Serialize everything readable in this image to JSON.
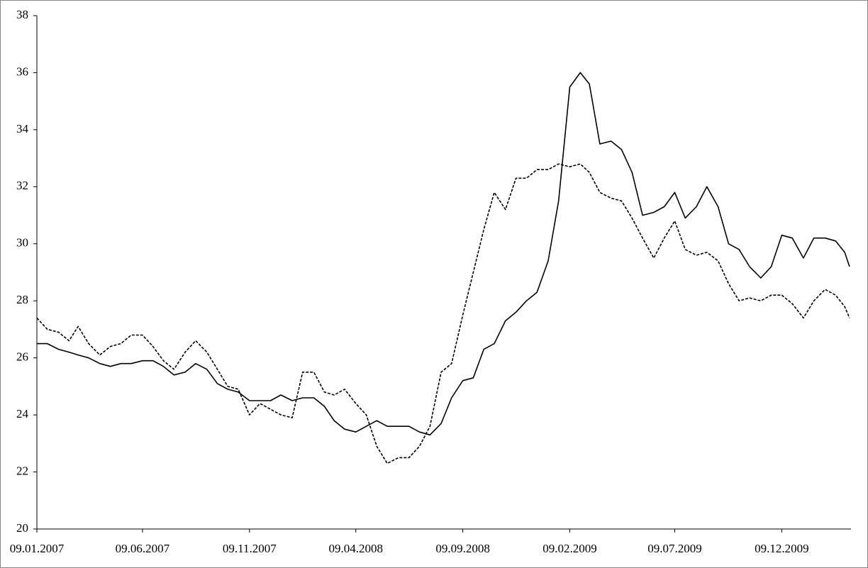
{
  "chart_data": {
    "type": "line",
    "x": [
      "09.01.2007",
      "24.01.2007",
      "09.02.2007",
      "24.02.2007",
      "09.03.2007",
      "24.03.2007",
      "09.04.2007",
      "24.04.2007",
      "09.05.2007",
      "24.05.2007",
      "09.06.2007",
      "24.06.2007",
      "09.07.2007",
      "24.07.2007",
      "09.08.2007",
      "24.08.2007",
      "09.09.2007",
      "24.09.2007",
      "09.10.2007",
      "24.10.2007",
      "09.11.2007",
      "24.11.2007",
      "09.12.2007",
      "24.12.2007",
      "09.01.2008",
      "24.01.2008",
      "09.02.2008",
      "24.02.2008",
      "09.03.2008",
      "24.03.2008",
      "09.04.2008",
      "24.04.2008",
      "09.05.2008",
      "24.05.2008",
      "09.06.2008",
      "24.06.2008",
      "09.07.2008",
      "24.07.2008",
      "09.08.2008",
      "24.08.2008",
      "09.09.2008",
      "24.09.2008",
      "09.10.2008",
      "24.10.2008",
      "09.11.2008",
      "24.11.2008",
      "09.12.2008",
      "24.12.2008",
      "09.01.2009",
      "24.01.2009",
      "09.02.2009",
      "24.02.2009",
      "09.03.2009",
      "24.03.2009",
      "09.04.2009",
      "24.04.2009",
      "09.05.2009",
      "24.05.2009",
      "09.06.2009",
      "24.06.2009",
      "09.07.2009",
      "24.07.2009",
      "09.08.2009",
      "24.08.2009",
      "09.09.2009",
      "24.09.2009",
      "09.10.2009",
      "24.10.2009",
      "09.11.2009",
      "24.11.2009",
      "09.12.2009",
      "24.12.2009",
      "09.01.2010",
      "24.01.2010",
      "09.02.2010",
      "24.02.2010",
      "09.03.2010",
      "16.03.2010"
    ],
    "series": [
      {
        "color": "#000000",
        "dash": false,
        "values": [
          26.5,
          26.5,
          26.3,
          26.2,
          26.1,
          26.0,
          25.8,
          25.7,
          25.8,
          25.8,
          25.9,
          25.9,
          25.7,
          25.4,
          25.5,
          25.8,
          25.6,
          25.1,
          24.9,
          24.8,
          24.5,
          24.5,
          24.5,
          24.7,
          24.5,
          24.6,
          24.6,
          24.3,
          23.8,
          23.5,
          23.4,
          23.6,
          23.8,
          23.6,
          23.6,
          23.6,
          23.4,
          23.3,
          23.7,
          24.6,
          25.2,
          25.3,
          26.3,
          26.5,
          27.3,
          27.6,
          28.0,
          28.3,
          29.4,
          31.5,
          35.5,
          36.0,
          35.6,
          33.5,
          33.6,
          33.3,
          32.5,
          31.0,
          31.1,
          31.3,
          31.8,
          30.9,
          31.3,
          32.0,
          31.3,
          30.0,
          29.8,
          29.2,
          28.8,
          29.2,
          30.3,
          30.2,
          29.5,
          30.2,
          30.2,
          30.1,
          29.7,
          29.2
        ]
      },
      {
        "color": "#000000",
        "dash": true,
        "values": [
          27.4,
          27.0,
          26.9,
          26.6,
          27.1,
          26.5,
          26.1,
          26.4,
          26.5,
          26.8,
          26.8,
          26.4,
          25.9,
          25.6,
          26.2,
          26.6,
          26.2,
          25.6,
          25.0,
          24.9,
          24.0,
          24.4,
          24.2,
          24.0,
          23.9,
          25.5,
          25.5,
          24.8,
          24.7,
          24.9,
          24.4,
          24.0,
          22.9,
          22.3,
          22.5,
          22.5,
          22.9,
          23.6,
          25.5,
          25.8,
          27.5,
          29.0,
          30.5,
          31.8,
          31.2,
          32.3,
          32.3,
          32.6,
          32.6,
          32.8,
          32.7,
          32.8,
          32.5,
          31.8,
          31.6,
          31.5,
          30.9,
          30.2,
          29.5,
          30.2,
          30.8,
          29.8,
          29.6,
          29.7,
          29.4,
          28.6,
          28.0,
          28.1,
          28.0,
          28.2,
          28.2,
          27.9,
          27.4,
          28.0,
          28.4,
          28.2,
          27.8,
          27.4
        ]
      }
    ],
    "xlim": [
      "09.01.2007",
      "18.03.2010"
    ],
    "xticks": [
      "09.01.2007",
      "09.06.2007",
      "09.11.2007",
      "09.04.2008",
      "09.09.2008",
      "09.02.2009",
      "09.07.2009",
      "09.12.2009"
    ],
    "ylim": [
      20,
      38
    ],
    "yticks": [
      20,
      22,
      24,
      26,
      28,
      30,
      32,
      34,
      36,
      38
    ],
    "grid": false
  }
}
